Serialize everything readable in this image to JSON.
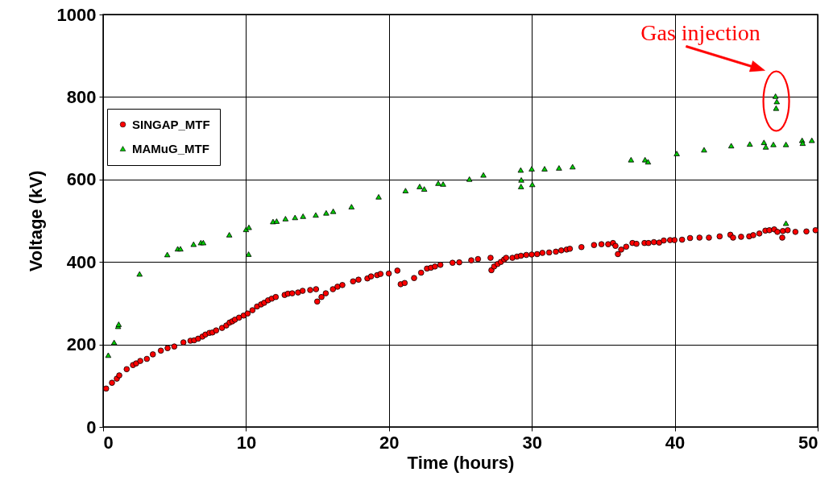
{
  "chart_data": {
    "type": "scatter",
    "xlabel": "Time (hours)",
    "ylabel": "Voltage (kV)",
    "xlim": [
      0,
      50
    ],
    "xticks": [
      0,
      10,
      20,
      30,
      40,
      50
    ],
    "ylim": [
      0,
      1000
    ],
    "yticks": [
      0,
      200,
      400,
      600,
      800,
      1000
    ],
    "grid": true,
    "legend": "top left",
    "annotations": [
      {
        "text": "Gas injection",
        "x": 47.1,
        "y": 790
      }
    ],
    "series": [
      {
        "name": "SINGAP_MTF",
        "color": "#ff0000",
        "marker": "circle",
        "x": [
          0.21,
          0.62,
          0.96,
          1.13,
          1.65,
          2.09,
          2.31,
          2.6,
          3.06,
          3.48,
          4.04,
          4.51,
          4.98,
          5.62,
          6.11,
          6.37,
          6.65,
          6.95,
          7.16,
          7.44,
          7.65,
          7.91,
          8.32,
          8.62,
          8.85,
          9.04,
          9.22,
          9.51,
          9.83,
          10.11,
          10.45,
          10.77,
          11.05,
          11.27,
          11.54,
          11.8,
          12.08,
          12.7,
          12.93,
          13.23,
          13.64,
          13.96,
          14.49,
          14.9,
          14.98,
          15.28,
          15.58,
          16.08,
          16.4,
          16.74,
          17.49,
          17.87,
          18.49,
          18.75,
          19.17,
          19.41,
          19.99,
          20.59,
          20.82,
          21.1,
          21.76,
          22.25,
          22.66,
          22.94,
          23.22,
          23.6,
          24.45,
          24.92,
          25.76,
          26.23,
          27.11,
          27.17,
          27.36,
          27.6,
          27.83,
          28.06,
          28.2,
          28.64,
          28.96,
          29.24,
          29.61,
          29.99,
          30.37,
          30.74,
          31.21,
          31.68,
          32.06,
          32.43,
          32.66,
          33.47,
          34.35,
          34.87,
          35.34,
          35.68,
          35.85,
          36.02,
          36.25,
          36.6,
          37.04,
          37.32,
          37.88,
          38.16,
          38.54,
          38.91,
          39.23,
          39.67,
          39.98,
          40.51,
          41.07,
          41.73,
          42.39,
          43.14,
          43.89,
          44.08,
          44.64,
          45.21,
          45.49,
          45.92,
          46.34,
          46.62,
          46.96,
          47.18,
          47.52,
          47.56,
          47.9,
          48.44,
          49.21,
          49.85
        ],
        "values": [
          93,
          107,
          117,
          125,
          140,
          150,
          154,
          160,
          165,
          176,
          185,
          191,
          195,
          205,
          209,
          210,
          214,
          219,
          224,
          228,
          229,
          234,
          240,
          246,
          253,
          256,
          260,
          265,
          270,
          275,
          283,
          292,
          297,
          301,
          307,
          311,
          315,
          320,
          323,
          324,
          326,
          330,
          332,
          334,
          304,
          315,
          324,
          334,
          340,
          344,
          353,
          357,
          360,
          365,
          368,
          371,
          372,
          379,
          346,
          349,
          361,
          374,
          384,
          386,
          389,
          393,
          398,
          399,
          404,
          407,
          410,
          380,
          389,
          395,
          400,
          406,
          410,
          410,
          413,
          415,
          417,
          418,
          419,
          422,
          423,
          425,
          428,
          430,
          432,
          436,
          441,
          443,
          443,
          446,
          439,
          419,
          430,
          437,
          446,
          444,
          446,
          446,
          448,
          447,
          452,
          453,
          453,
          454,
          458,
          459,
          459,
          462,
          466,
          459,
          461,
          462,
          465,
          469,
          476,
          477,
          479,
          473,
          459,
          475,
          477,
          473,
          474,
          477
        ]
      },
      {
        "name": "MAMuG_MTF",
        "color": "#00cc00",
        "marker": "triangle",
        "x": [
          0.36,
          0.77,
          1.05,
          1.09,
          2.55,
          4.49,
          5.22,
          5.41,
          6.33,
          6.84,
          7.01,
          8.83,
          10.0,
          10.2,
          10.18,
          11.89,
          12.14,
          12.76,
          13.43,
          13.99,
          14.88,
          15.61,
          16.1,
          17.38,
          19.28,
          21.16,
          22.15,
          22.47,
          23.45,
          23.79,
          25.63,
          26.61,
          29.22,
          29.26,
          29.24,
          29.99,
          30.03,
          30.89,
          31.9,
          32.85,
          36.94,
          37.92,
          38.13,
          40.14,
          42.05,
          43.95,
          45.25,
          46.24,
          46.37,
          46.9,
          47.05,
          47.14,
          47.09,
          47.78,
          47.78,
          48.91,
          48.95,
          49.59
        ],
        "values": [
          174,
          205,
          244,
          249,
          371,
          418,
          432,
          432,
          443,
          447,
          447,
          466,
          479,
          484,
          419,
          498,
          499,
          505,
          508,
          511,
          514,
          519,
          523,
          534,
          558,
          573,
          583,
          577,
          591,
          589,
          601,
          611,
          623,
          599,
          583,
          626,
          588,
          626,
          628,
          631,
          648,
          648,
          643,
          663,
          672,
          682,
          686,
          690,
          679,
          685,
          802,
          789,
          773,
          685,
          494,
          695,
          688,
          695
        ]
      }
    ]
  }
}
